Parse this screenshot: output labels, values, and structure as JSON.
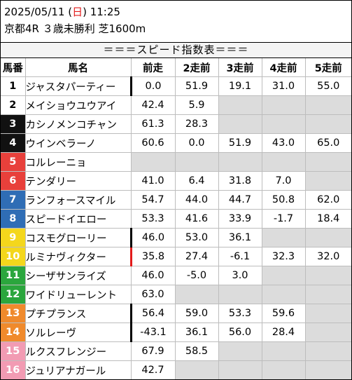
{
  "header": {
    "date_prefix": "2025/05/11 (",
    "weekday": "日",
    "time_suffix": ") 11:25",
    "race_info": "京都4R ３歳未勝利 芝1600m"
  },
  "banner": "＝＝＝スピード指数表＝＝＝",
  "columns": [
    "馬番",
    "馬名",
    "前走",
    "2走前",
    "3走前",
    "4走前",
    "5走前"
  ],
  "colors": {
    "frame1": "#ffffff",
    "frame2": "#111111",
    "frame3": "#e8403b",
    "frame4": "#2f6db5",
    "frame5": "#f4d71c",
    "frame6": "#2ba63d",
    "frame7": "#f08a2c",
    "frame8": "#f29bb3",
    "sunday": "#e21b1b",
    "empty_cell": "#dcdcdc"
  },
  "rows": [
    {
      "num": "1",
      "name": "ジャスタパーティー",
      "frame": "1",
      "mark": "black",
      "scores": [
        "0.0",
        "51.9",
        "19.1",
        "31.0",
        "55.0"
      ]
    },
    {
      "num": "2",
      "name": "メイショウユウアイ",
      "frame": "1",
      "mark": "",
      "scores": [
        "42.4",
        "5.9",
        "",
        "",
        ""
      ]
    },
    {
      "num": "3",
      "name": "カシノメンコチャン",
      "frame": "2",
      "mark": "",
      "scores": [
        "61.3",
        "28.3",
        "",
        "",
        ""
      ]
    },
    {
      "num": "4",
      "name": "ウインベラーノ",
      "frame": "2",
      "mark": "",
      "scores": [
        "60.6",
        "0.0",
        "51.9",
        "43.0",
        "65.0"
      ]
    },
    {
      "num": "5",
      "name": "コルレーニョ",
      "frame": "3",
      "mark": "",
      "scores": [
        "",
        "",
        "",
        "",
        ""
      ]
    },
    {
      "num": "6",
      "name": "テンダリー",
      "frame": "3",
      "mark": "",
      "scores": [
        "41.0",
        "6.4",
        "31.8",
        "7.0",
        ""
      ]
    },
    {
      "num": "7",
      "name": "ランフォースマイル",
      "frame": "4",
      "mark": "",
      "scores": [
        "54.7",
        "44.0",
        "44.7",
        "50.8",
        "62.0"
      ]
    },
    {
      "num": "8",
      "name": "スピードイエロー",
      "frame": "4",
      "mark": "",
      "scores": [
        "53.3",
        "41.6",
        "33.9",
        "-1.7",
        "18.4"
      ]
    },
    {
      "num": "9",
      "name": "コスモグローリー",
      "frame": "5",
      "mark": "black",
      "scores": [
        "46.0",
        "53.0",
        "36.1",
        "",
        ""
      ]
    },
    {
      "num": "10",
      "name": "ルミナヴィクター",
      "frame": "5",
      "mark": "red",
      "scores": [
        "35.8",
        "27.4",
        "-6.1",
        "32.3",
        "32.0"
      ]
    },
    {
      "num": "11",
      "name": "シーザサンライズ",
      "frame": "6",
      "mark": "",
      "scores": [
        "46.0",
        "-5.0",
        "3.0",
        "",
        ""
      ]
    },
    {
      "num": "12",
      "name": "ワイドリューレント",
      "frame": "6",
      "mark": "",
      "scores": [
        "63.0",
        "",
        "",
        "",
        ""
      ]
    },
    {
      "num": "13",
      "name": "プチプランス",
      "frame": "7",
      "mark": "black",
      "scores": [
        "56.4",
        "59.0",
        "53.3",
        "59.6",
        ""
      ]
    },
    {
      "num": "14",
      "name": "ソルレーヴ",
      "frame": "7",
      "mark": "black",
      "scores": [
        "-43.1",
        "36.1",
        "56.0",
        "28.4",
        ""
      ]
    },
    {
      "num": "15",
      "name": "ルクスフレンジー",
      "frame": "8",
      "mark": "",
      "scores": [
        "67.9",
        "58.5",
        "",
        "",
        ""
      ]
    },
    {
      "num": "16",
      "name": "ジュリアナガール",
      "frame": "8",
      "mark": "",
      "scores": [
        "42.7",
        "",
        "",
        "",
        ""
      ]
    }
  ]
}
